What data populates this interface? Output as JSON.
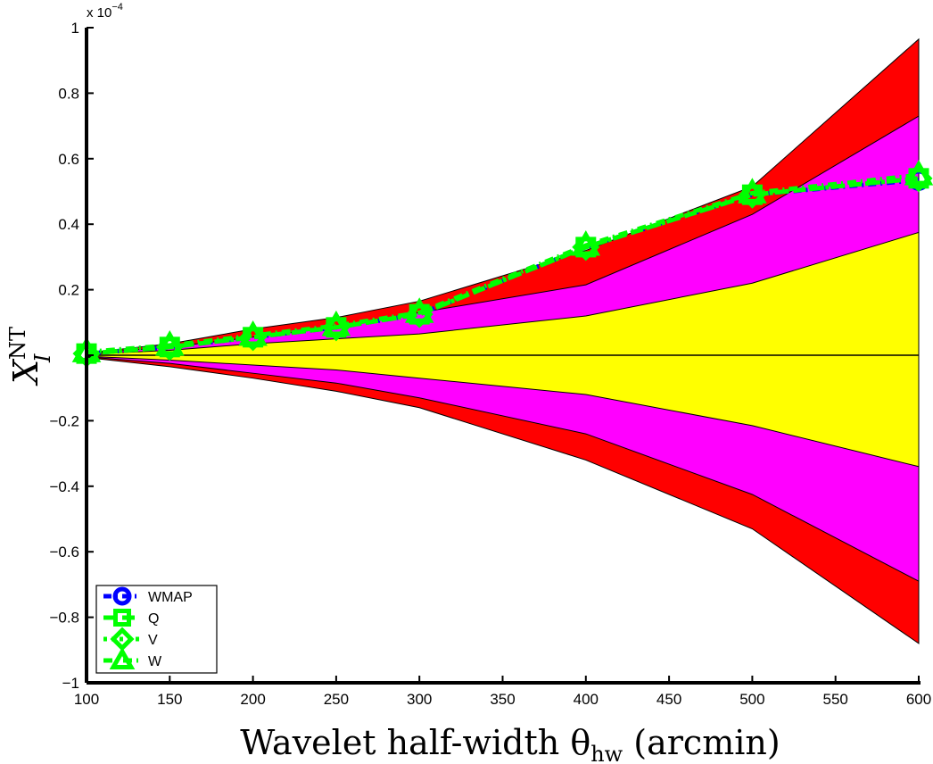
{
  "chart_data": {
    "type": "line",
    "title": "",
    "xlabel": "Wavelet half-width θ",
    "xlabel_sub": "hw",
    "xlabel_suffix": " (arcmin)",
    "ylabel": "X",
    "ylabel_sup": "NT",
    "ylabel_sub": "I",
    "y_exponent_label": "x 10",
    "y_exponent_power": "−4",
    "xlim": [
      100,
      600
    ],
    "ylim": [
      -1,
      1
    ],
    "xticks": [
      100,
      150,
      200,
      250,
      300,
      350,
      400,
      450,
      500,
      550,
      600
    ],
    "xtick_labels": [
      "100",
      "150",
      "200",
      "250",
      "300",
      "350",
      "400",
      "450",
      "500",
      "550",
      "600"
    ],
    "yticks": [
      1,
      0.8,
      0.6,
      0.4,
      0.2,
      0,
      -0.2,
      -0.4,
      -0.6,
      -0.8,
      -1
    ],
    "ytick_labels": [
      "1",
      "0.8",
      "0.6",
      "0.4",
      "0.2",
      "",
      "−0.2",
      "−0.4",
      "−0.6",
      "−0.8",
      "−1"
    ],
    "grid": false,
    "legend_position": "bottom-left",
    "x": [
      100,
      150,
      200,
      250,
      300,
      400,
      500,
      600
    ],
    "bands": [
      {
        "level": "outer",
        "color": "#ff0000",
        "upper": [
          0.007,
          0.035,
          0.08,
          0.115,
          0.165,
          0.32,
          0.515,
          0.965
        ],
        "lower": [
          -0.007,
          -0.035,
          -0.07,
          -0.11,
          -0.16,
          -0.32,
          -0.53,
          -0.88
        ]
      },
      {
        "level": "middle",
        "color": "#ff00ff",
        "upper": [
          0.005,
          0.025,
          0.055,
          0.085,
          0.13,
          0.215,
          0.43,
          0.73
        ],
        "lower": [
          -0.005,
          -0.025,
          -0.055,
          -0.085,
          -0.13,
          -0.24,
          -0.425,
          -0.69
        ]
      },
      {
        "level": "inner",
        "color": "#ffff00",
        "upper": [
          0.003,
          0.015,
          0.035,
          0.05,
          0.065,
          0.12,
          0.22,
          0.375
        ],
        "lower": [
          -0.003,
          -0.015,
          -0.03,
          -0.045,
          -0.07,
          -0.12,
          -0.215,
          -0.34
        ]
      }
    ],
    "series": [
      {
        "name": "WMAP",
        "color": "#0000ff",
        "marker": "circle",
        "dash": "9,5,2,5",
        "values": [
          0.005,
          0.025,
          0.055,
          0.085,
          0.125,
          0.33,
          0.49,
          0.535
        ]
      },
      {
        "name": "Q",
        "color": "#00ff00",
        "marker": "square",
        "dash": "14,7",
        "values": [
          0.005,
          0.025,
          0.055,
          0.085,
          0.125,
          0.33,
          0.49,
          0.54
        ]
      },
      {
        "name": "V",
        "color": "#00ff00",
        "marker": "diamond",
        "dash": "4,5",
        "values": [
          0.005,
          0.025,
          0.055,
          0.085,
          0.125,
          0.33,
          0.49,
          0.54
        ]
      },
      {
        "name": "W",
        "color": "#00ff00",
        "marker": "triangle",
        "dash": "10,5,2,5",
        "values": [
          0.01,
          0.03,
          0.06,
          0.09,
          0.13,
          0.335,
          0.495,
          0.55
        ]
      }
    ]
  }
}
